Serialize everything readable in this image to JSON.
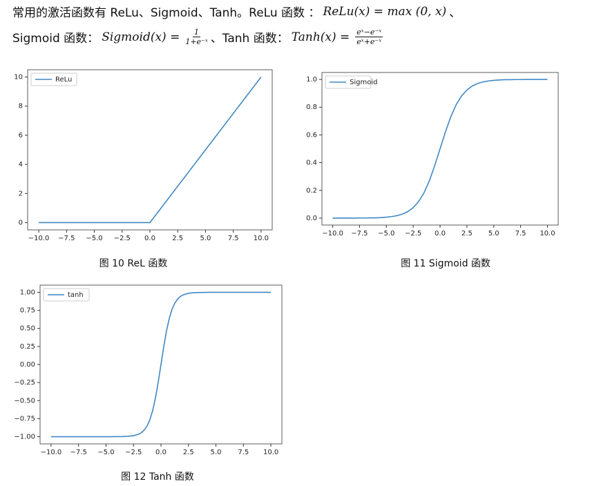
{
  "text": {
    "line1": {
      "intro": "常用的激活函数有 ReLu、Sigmoid、Tanh。ReLu 函数 ：",
      "formula": "ReLu(x) = max (0, x)",
      "end": "、"
    },
    "line2": {
      "sigmoid_label": "Sigmoid 函数：",
      "sigmoid_lhs": "Sigmoid(x) =",
      "sigmoid_num": "1",
      "sigmoid_den": "1+e⁻ˣ",
      "sep": "、Tanh 函数：",
      "tanh_lhs": "Tanh(x) =",
      "tanh_num": "eˣ−e⁻ˣ",
      "tanh_den": "eˣ+e⁻ˣ"
    },
    "captions": [
      "图 10 ReL 函数",
      "图 11 Sigmoid 函数",
      "图 12 Tanh 函数"
    ]
  },
  "chart_data": [
    {
      "type": "line",
      "legend": "upper left",
      "x": [
        -10,
        0,
        10
      ],
      "series": [
        {
          "name": "ReLu",
          "color": "#3f87c4",
          "values": [
            0,
            0,
            10
          ]
        }
      ],
      "xlim": [
        -11,
        11
      ],
      "ylim": [
        -0.5,
        10.5
      ],
      "xticks": [
        {
          "value": -10,
          "label": "−10.0"
        },
        {
          "value": -7.5,
          "label": "−7.5"
        },
        {
          "value": -5,
          "label": "−5.0"
        },
        {
          "value": -2.5,
          "label": "−2.5"
        },
        {
          "value": 0,
          "label": "0.0"
        },
        2.5,
        {
          "value": 5,
          "label": "5.0"
        },
        7.5,
        {
          "value": 10,
          "label": "10.0"
        }
      ],
      "yticks": [
        0,
        2,
        4,
        6,
        8,
        10
      ]
    },
    {
      "type": "line",
      "legend": "upper left",
      "x": [
        -10,
        -9.5,
        -9,
        -8.5,
        -8,
        -7.5,
        -7,
        -6.5,
        -6,
        -5.5,
        -5,
        -4.5,
        -4,
        -3.5,
        -3,
        -2.5,
        -2,
        -1.5,
        -1,
        -0.5,
        0,
        0.5,
        1,
        1.5,
        2,
        2.5,
        3,
        3.5,
        4,
        4.5,
        5,
        5.5,
        6,
        6.5,
        7,
        7.5,
        8,
        8.5,
        9,
        9.5,
        10
      ],
      "series": [
        {
          "name": "Sigmoid",
          "color": "#3f87c4",
          "values": [
            0,
            0,
            0,
            0,
            0,
            0.001,
            0.001,
            0.002,
            0.002,
            0.004,
            0.007,
            0.011,
            0.018,
            0.029,
            0.047,
            0.076,
            0.119,
            0.182,
            0.269,
            0.378,
            0.5,
            0.622,
            0.731,
            0.818,
            0.881,
            0.924,
            0.953,
            0.971,
            0.982,
            0.989,
            0.993,
            0.996,
            0.998,
            0.998,
            0.999,
            0.999,
            1,
            1,
            1,
            1,
            1
          ]
        }
      ],
      "xlim": [
        -11,
        11
      ],
      "ylim": [
        -0.05,
        1.05
      ],
      "xticks": [
        {
          "value": -10,
          "label": "−10.0"
        },
        {
          "value": -7.5,
          "label": "−7.5"
        },
        {
          "value": -5,
          "label": "−5.0"
        },
        {
          "value": -2.5,
          "label": "−2.5"
        },
        {
          "value": 0,
          "label": "0.0"
        },
        2.5,
        {
          "value": 5,
          "label": "5.0"
        },
        7.5,
        {
          "value": 10,
          "label": "10.0"
        }
      ],
      "yticks": [
        {
          "value": 0,
          "label": "0.0"
        },
        0.2,
        0.4,
        0.6,
        0.8,
        {
          "value": 1,
          "label": "1.0"
        }
      ]
    },
    {
      "type": "line",
      "legend": "upper left",
      "x": [
        -10,
        -9.5,
        -9,
        -8.5,
        -8,
        -7.5,
        -7,
        -6.5,
        -6,
        -5.5,
        -5,
        -4.5,
        -4,
        -3.5,
        -3,
        -2.5,
        -2,
        -1.75,
        -1.5,
        -1.25,
        -1,
        -0.75,
        -0.5,
        -0.25,
        0,
        0.25,
        0.5,
        0.75,
        1,
        1.25,
        1.5,
        1.75,
        2,
        2.5,
        3,
        3.5,
        4,
        4.5,
        5,
        5.5,
        6,
        6.5,
        7,
        7.5,
        8,
        8.5,
        9,
        9.5,
        10
      ],
      "series": [
        {
          "name": "tanh",
          "color": "#3f87c4",
          "values": [
            -1,
            -1,
            -1,
            -1,
            -1,
            -1,
            -1,
            -1,
            -1,
            -1,
            -1,
            -1,
            -0.999,
            -0.998,
            -0.995,
            -0.987,
            -0.964,
            -0.941,
            -0.905,
            -0.848,
            -0.762,
            -0.635,
            -0.462,
            -0.245,
            0,
            0.245,
            0.462,
            0.635,
            0.762,
            0.848,
            0.905,
            0.941,
            0.964,
            0.987,
            0.995,
            0.998,
            0.999,
            1,
            1,
            1,
            1,
            1,
            1,
            1,
            1,
            1,
            1,
            1,
            1
          ]
        }
      ],
      "xlim": [
        -11,
        11
      ],
      "ylim": [
        -1.1,
        1.1
      ],
      "xticks": [
        {
          "value": -10,
          "label": "−10.0"
        },
        {
          "value": -7.5,
          "label": "−7.5"
        },
        {
          "value": -5,
          "label": "−5.0"
        },
        {
          "value": -2.5,
          "label": "−2.5"
        },
        {
          "value": 0,
          "label": "0.0"
        },
        2.5,
        {
          "value": 5,
          "label": "5.0"
        },
        7.5,
        {
          "value": 10,
          "label": "10.0"
        }
      ],
      "yticks": [
        {
          "value": -1,
          "label": "−1.00"
        },
        {
          "value": -0.75,
          "label": "−0.75"
        },
        {
          "value": -0.5,
          "label": "−0.50"
        },
        {
          "value": -0.25,
          "label": "−0.25"
        },
        {
          "value": 0,
          "label": "0.00"
        },
        0.25,
        {
          "value": 0.5,
          "label": "0.50"
        },
        0.75,
        {
          "value": 1,
          "label": "1.00"
        }
      ]
    }
  ]
}
